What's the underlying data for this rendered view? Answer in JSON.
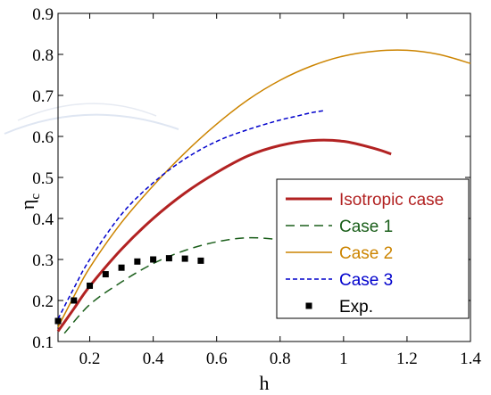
{
  "chart_data": {
    "type": "line",
    "xlabel": "h",
    "ylabel": "η",
    "ylabel_sub": "c",
    "xlim": [
      0.1,
      1.4
    ],
    "ylim": [
      0.1,
      0.9
    ],
    "x_ticks": [
      0.2,
      0.4,
      0.6,
      0.8,
      1,
      1.2,
      1.4
    ],
    "x_tick_labels": [
      "0.2",
      "0.4",
      "0.6",
      "0.8",
      "1",
      "1.2",
      "1.4"
    ],
    "y_ticks": [
      0.1,
      0.2,
      0.3,
      0.4,
      0.5,
      0.6,
      0.7,
      0.8,
      0.9
    ],
    "y_tick_labels": [
      "0.1",
      "0.2",
      "0.3",
      "0.4",
      "0.5",
      "0.6",
      "0.7",
      "0.8",
      "0.9"
    ],
    "grid": false,
    "legend_position": "lower-right",
    "series": [
      {
        "name": "Isotropic case",
        "color": "#b22222",
        "style": "solid-thick",
        "x": [
          0.1,
          0.15,
          0.2,
          0.3,
          0.4,
          0.5,
          0.6,
          0.7,
          0.8,
          0.9,
          1.0,
          1.1,
          1.15
        ],
        "y": [
          0.125,
          0.18,
          0.235,
          0.325,
          0.4,
          0.462,
          0.512,
          0.553,
          0.578,
          0.59,
          0.588,
          0.57,
          0.557
        ]
      },
      {
        "name": "Case 1",
        "color": "#1a5e1a",
        "style": "dashed-long",
        "x": [
          0.12,
          0.2,
          0.3,
          0.4,
          0.5,
          0.6,
          0.7,
          0.8,
          0.85
        ],
        "y": [
          0.12,
          0.19,
          0.245,
          0.29,
          0.322,
          0.343,
          0.353,
          0.348,
          0.34
        ]
      },
      {
        "name": "Case 2",
        "color": "#cc8400",
        "style": "solid-thin",
        "x": [
          0.1,
          0.15,
          0.2,
          0.3,
          0.4,
          0.5,
          0.6,
          0.7,
          0.8,
          0.9,
          1.0,
          1.1,
          1.2,
          1.3,
          1.4
        ],
        "y": [
          0.135,
          0.21,
          0.28,
          0.39,
          0.48,
          0.56,
          0.63,
          0.69,
          0.737,
          0.772,
          0.796,
          0.808,
          0.81,
          0.8,
          0.778
        ]
      },
      {
        "name": "Case 3",
        "color": "#0000cc",
        "style": "dashed-short",
        "x": [
          0.1,
          0.15,
          0.2,
          0.3,
          0.4,
          0.5,
          0.6,
          0.7,
          0.8,
          0.85,
          0.9,
          0.94
        ],
        "y": [
          0.155,
          0.23,
          0.3,
          0.41,
          0.487,
          0.545,
          0.588,
          0.617,
          0.64,
          0.649,
          0.658,
          0.663
        ]
      }
    ],
    "points": {
      "name": "Exp.",
      "color": "#000000",
      "x": [
        0.1,
        0.15,
        0.2,
        0.25,
        0.3,
        0.35,
        0.4,
        0.45,
        0.5,
        0.55
      ],
      "y": [
        0.15,
        0.2,
        0.236,
        0.264,
        0.28,
        0.295,
        0.3,
        0.303,
        0.302,
        0.297
      ]
    }
  }
}
